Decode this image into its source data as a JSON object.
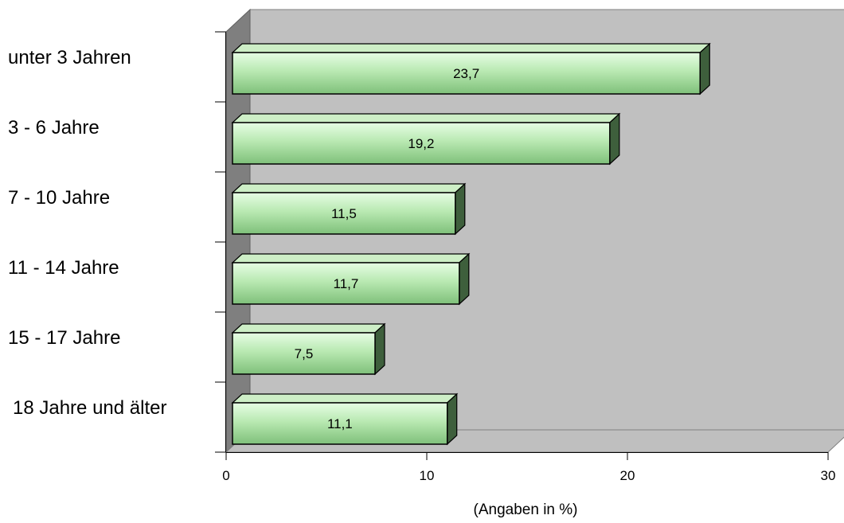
{
  "chart_data": {
    "type": "bar",
    "orientation": "horizontal",
    "three_d": true,
    "categories": [
      "unter 3 Jahren",
      "3 - 6 Jahre",
      "7 - 10 Jahre",
      "11 - 14 Jahre",
      "15 - 17 Jahre",
      "18 Jahre und älter"
    ],
    "values": [
      23.7,
      19.2,
      11.5,
      11.7,
      7.5,
      11.1
    ],
    "value_labels": [
      "23,7",
      "19,2",
      "11,5",
      "11,7",
      "7,5",
      "11,1"
    ],
    "xlabel": "(Angaben in %)",
    "xlim": [
      0,
      30
    ],
    "xticks": [
      "0",
      "10",
      "20",
      "30"
    ],
    "grid": false,
    "legend": "none",
    "colors": {
      "bar_front_light": "#e6fde4",
      "bar_front_mid": "#b9e9b2",
      "bar_front_dark": "#7fc07a",
      "bar_top": "#cdeec6",
      "bar_side": "#3e5f3c",
      "wall_back": "#c0c0c0",
      "wall_left": "#7f7f7f",
      "floor": "#bfbfbf"
    }
  }
}
